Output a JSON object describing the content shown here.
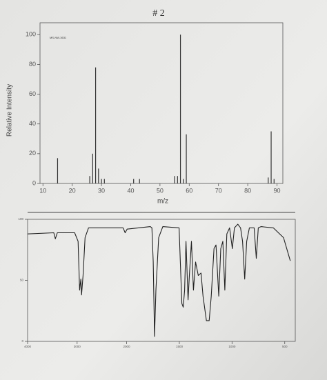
{
  "chart_data": [
    {
      "type": "bar",
      "title": "# 2",
      "annotation": "MS-NW-3631",
      "xlabel": "m/z",
      "ylabel": "Relative Intensity",
      "x": [
        15,
        26,
        27,
        28,
        29,
        30,
        31,
        41,
        43,
        55,
        56,
        57,
        58,
        59,
        87,
        88,
        89
      ],
      "values": [
        17,
        5,
        20,
        78,
        10,
        3,
        3,
        3,
        3,
        5,
        5,
        100,
        3,
        33,
        4,
        35,
        3
      ],
      "color": "#333333",
      "xlim": [
        9,
        92
      ],
      "xticks": [
        10,
        20,
        30,
        40,
        50,
        60,
        70,
        80,
        90
      ],
      "ylim": [
        0,
        108
      ],
      "yticks": [
        0,
        20,
        40,
        60,
        80,
        100
      ]
    },
    {
      "type": "line",
      "x": [
        4000,
        3470,
        3440,
        3400,
        3050,
        2980,
        2950,
        2925,
        2910,
        2880,
        2840,
        2770,
        2070,
        2030,
        1995,
        1775,
        1760,
        1748,
        1735,
        1722,
        1696,
        1657,
        1502,
        1476,
        1463,
        1450,
        1437,
        1417,
        1405,
        1385,
        1366,
        1346,
        1320,
        1294,
        1275,
        1243,
        1217,
        1197,
        1171,
        1152,
        1126,
        1107,
        1087,
        1068,
        1049,
        1023,
        997,
        977,
        945,
        919,
        900,
        880,
        861,
        835,
        790,
        770,
        751,
        725,
        608,
        511,
        447
      ],
      "values": [
        88,
        89,
        84,
        89,
        89,
        82,
        42,
        51,
        38,
        54,
        85,
        93,
        93,
        89,
        92,
        94,
        93,
        65,
        4,
        42,
        85,
        94,
        93,
        31,
        28,
        42,
        82,
        34,
        54,
        82,
        42,
        65,
        54,
        56,
        37,
        17,
        17,
        37,
        76,
        79,
        37,
        76,
        82,
        42,
        88,
        93,
        76,
        93,
        96,
        93,
        82,
        51,
        82,
        93,
        93,
        68,
        93,
        94,
        93,
        85,
        66
      ],
      "color": "#222222",
      "xlim": [
        4000,
        400
      ],
      "x_scale_change": 2000,
      "xticks": [
        4000,
        3000,
        2000,
        1500,
        1000,
        500
      ],
      "ylim": [
        0,
        100
      ],
      "yticks": [
        0,
        50,
        100
      ]
    }
  ]
}
